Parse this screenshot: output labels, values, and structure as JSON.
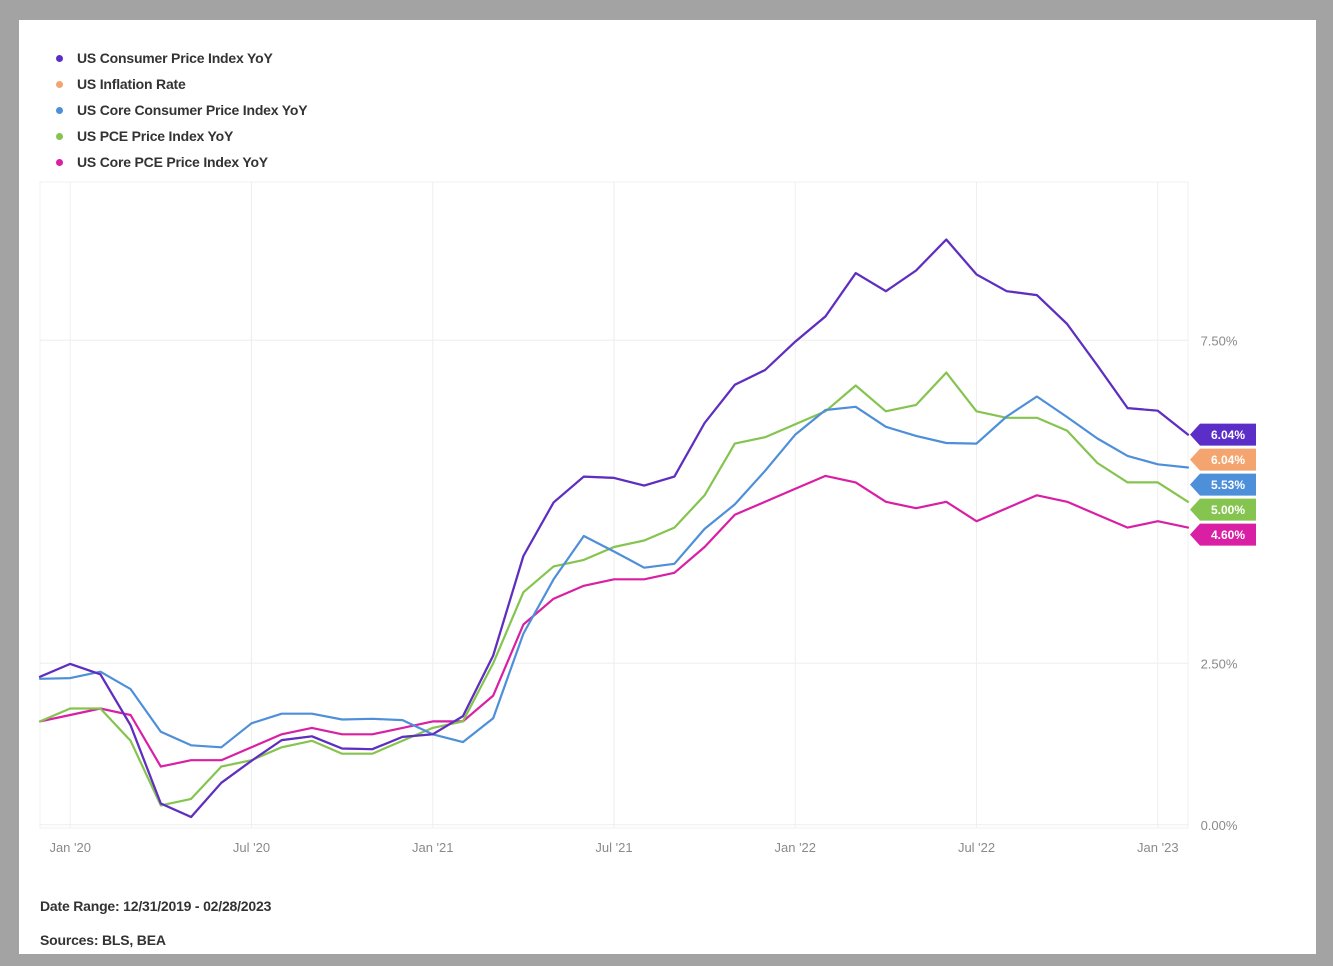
{
  "footer": {
    "date_range": "Date Range: 12/31/2019 - 02/28/2023",
    "sources": "Sources: BLS, BEA"
  },
  "chart_data": {
    "type": "line",
    "x_tick_labels": [
      "Jan '20",
      "Jul '20",
      "Jan '21",
      "Jul '21",
      "Jan '22",
      "Jul '22",
      "Jan '23"
    ],
    "x_tick_dates": [
      "2020-01",
      "2020-07",
      "2021-01",
      "2021-07",
      "2022-01",
      "2022-07",
      "2023-01"
    ],
    "x_range": [
      "2019-12",
      "2023-02"
    ],
    "y_tick_labels": [
      "0.00%",
      "2.50%",
      "7.50%"
    ],
    "y_tick_values": [
      0,
      2.5,
      7.5
    ],
    "ylim": [
      -0.05,
      9.95
    ],
    "y_axis_position": "right",
    "grid": true,
    "legend_position": "top-left",
    "x": [
      "2019-12",
      "2020-01",
      "2020-02",
      "2020-03",
      "2020-04",
      "2020-05",
      "2020-06",
      "2020-07",
      "2020-08",
      "2020-09",
      "2020-10",
      "2020-11",
      "2020-12",
      "2021-01",
      "2021-02",
      "2021-03",
      "2021-04",
      "2021-05",
      "2021-06",
      "2021-07",
      "2021-08",
      "2021-09",
      "2021-10",
      "2021-11",
      "2021-12",
      "2022-01",
      "2022-02",
      "2022-03",
      "2022-04",
      "2022-05",
      "2022-06",
      "2022-07",
      "2022-08",
      "2022-09",
      "2022-10",
      "2022-11",
      "2022-12",
      "2023-01",
      "2023-02"
    ],
    "series": [
      {
        "name": "US Consumer Price Index YoY",
        "color": "#5b2fc7",
        "end_label": "6.04%",
        "values": [
          2.29,
          2.49,
          2.33,
          1.54,
          0.33,
          0.12,
          0.65,
          0.99,
          1.31,
          1.37,
          1.18,
          1.17,
          1.36,
          1.4,
          1.68,
          2.62,
          4.16,
          4.99,
          5.39,
          5.37,
          5.25,
          5.39,
          6.22,
          6.81,
          7.04,
          7.48,
          7.87,
          8.54,
          8.26,
          8.58,
          9.06,
          8.52,
          8.26,
          8.2,
          7.75,
          7.11,
          6.45,
          6.41,
          6.04
        ]
      },
      {
        "name": "US Inflation Rate",
        "color": "#f4a46e",
        "end_label": "6.04%",
        "values": [
          2.29,
          2.49,
          2.33,
          1.54,
          0.33,
          0.12,
          0.65,
          0.99,
          1.31,
          1.37,
          1.18,
          1.17,
          1.36,
          1.4,
          1.68,
          2.62,
          4.16,
          4.99,
          5.39,
          5.37,
          5.25,
          5.39,
          6.22,
          6.81,
          7.04,
          7.48,
          7.87,
          8.54,
          8.26,
          8.58,
          9.06,
          8.52,
          8.26,
          8.2,
          7.75,
          7.11,
          6.45,
          6.41,
          6.04
        ]
      },
      {
        "name": "US Core Consumer Price Index YoY",
        "color": "#4e8fd9",
        "end_label": "5.53%",
        "values": [
          2.26,
          2.27,
          2.37,
          2.1,
          1.44,
          1.23,
          1.2,
          1.57,
          1.72,
          1.72,
          1.63,
          1.64,
          1.62,
          1.4,
          1.28,
          1.65,
          2.96,
          3.8,
          4.47,
          4.23,
          3.98,
          4.04,
          4.58,
          4.96,
          5.48,
          6.04,
          6.42,
          6.47,
          6.16,
          6.02,
          5.91,
          5.9,
          6.32,
          6.63,
          6.31,
          5.98,
          5.71,
          5.58,
          5.53
        ]
      },
      {
        "name": "US PCE Price Index YoY",
        "color": "#84c44f",
        "end_label": "5.00%",
        "values": [
          1.6,
          1.8,
          1.8,
          1.3,
          0.3,
          0.4,
          0.9,
          1.0,
          1.2,
          1.3,
          1.1,
          1.1,
          1.3,
          1.5,
          1.6,
          2.5,
          3.6,
          4.0,
          4.1,
          4.3,
          4.4,
          4.6,
          5.1,
          5.9,
          6.0,
          6.2,
          6.4,
          6.8,
          6.4,
          6.5,
          7.0,
          6.4,
          6.3,
          6.3,
          6.1,
          5.6,
          5.3,
          5.3,
          5.0
        ]
      },
      {
        "name": "US Core PCE Price Index YoY",
        "color": "#d91fa3",
        "end_label": "4.60%",
        "values": [
          1.6,
          1.7,
          1.8,
          1.7,
          0.9,
          1.0,
          1.0,
          1.2,
          1.4,
          1.5,
          1.4,
          1.4,
          1.5,
          1.6,
          1.6,
          2.0,
          3.1,
          3.5,
          3.7,
          3.8,
          3.8,
          3.9,
          4.3,
          4.8,
          5.0,
          5.2,
          5.4,
          5.3,
          5.0,
          4.9,
          5.0,
          4.7,
          4.9,
          5.1,
          5.0,
          4.8,
          4.6,
          4.7,
          4.6
        ]
      }
    ]
  }
}
